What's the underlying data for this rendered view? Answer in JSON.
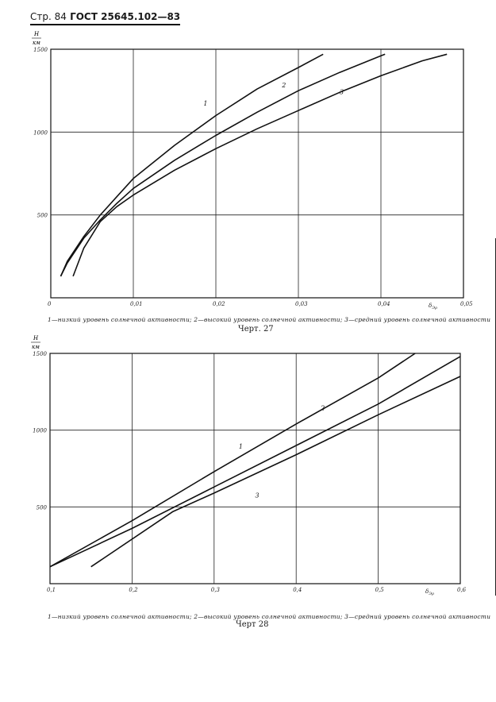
{
  "header": {
    "page_label": "Стр. 84",
    "standard": "ГОСТ 25645.102—83"
  },
  "figures": [
    {
      "title": "Черт. 27",
      "caption": "1—низкий уровень солнечной активности; 2—высокий уровень солнечной активности; 3—средний уровень солнечной активности"
    },
    {
      "title": "Черт 28",
      "caption": "1—низкий уровень солнечной активности; 2—высокий уровень солнечной активности; 3—средний уровень солнечной активности"
    }
  ],
  "chart_data": [
    {
      "type": "line",
      "ylabel": "H/км",
      "xlabel": "δ_Эρ",
      "xlim": [
        0,
        0.05
      ],
      "ylim": [
        0,
        1500
      ],
      "xticks": [
        "0",
        "0,01",
        "0,02",
        "0,03",
        "0,04",
        "0,05"
      ],
      "yticks": [
        "500",
        "1000",
        "1500"
      ],
      "grid": true,
      "series": [
        {
          "name": "1",
          "x": [
            0.0012,
            0.002,
            0.004,
            0.006,
            0.008,
            0.01,
            0.015,
            0.02,
            0.025,
            0.03,
            0.033
          ],
          "y": [
            130,
            220,
            370,
            500,
            610,
            720,
            920,
            1100,
            1260,
            1390,
            1470
          ]
        },
        {
          "name": "2",
          "x": [
            0.0012,
            0.002,
            0.004,
            0.006,
            0.008,
            0.01,
            0.015,
            0.02,
            0.025,
            0.03,
            0.035,
            0.04,
            0.0405
          ],
          "y": [
            130,
            210,
            360,
            470,
            570,
            660,
            830,
            980,
            1120,
            1250,
            1360,
            1460,
            1470
          ]
        },
        {
          "name": "3",
          "x": [
            0.0027,
            0.004,
            0.006,
            0.008,
            0.01,
            0.015,
            0.02,
            0.025,
            0.03,
            0.035,
            0.04,
            0.045,
            0.048
          ],
          "y": [
            130,
            300,
            460,
            550,
            620,
            770,
            900,
            1020,
            1130,
            1240,
            1340,
            1430,
            1470
          ]
        }
      ]
    },
    {
      "type": "line",
      "ylabel": "H/км",
      "xlabel": "δ_Эρ",
      "xlim": [
        0.1,
        0.6
      ],
      "ylim": [
        0,
        1500
      ],
      "xticks": [
        "0,1",
        "0,2",
        "0,3",
        "0,4",
        "0,5",
        "0,6"
      ],
      "yticks": [
        "500",
        "1000",
        "1500"
      ],
      "grid": true,
      "series": [
        {
          "name": "1",
          "x": [
            0.1,
            0.2,
            0.3,
            0.4,
            0.5,
            0.545
          ],
          "y": [
            110,
            410,
            730,
            1040,
            1340,
            1500
          ]
        },
        {
          "name": "2",
          "x": [
            0.1,
            0.2,
            0.3,
            0.4,
            0.5,
            0.6
          ],
          "y": [
            110,
            360,
            630,
            900,
            1170,
            1480
          ]
        },
        {
          "name": "3",
          "x": [
            0.15,
            0.25,
            0.3,
            0.4,
            0.5,
            0.6
          ],
          "y": [
            110,
            470,
            590,
            840,
            1100,
            1350
          ]
        }
      ]
    }
  ]
}
